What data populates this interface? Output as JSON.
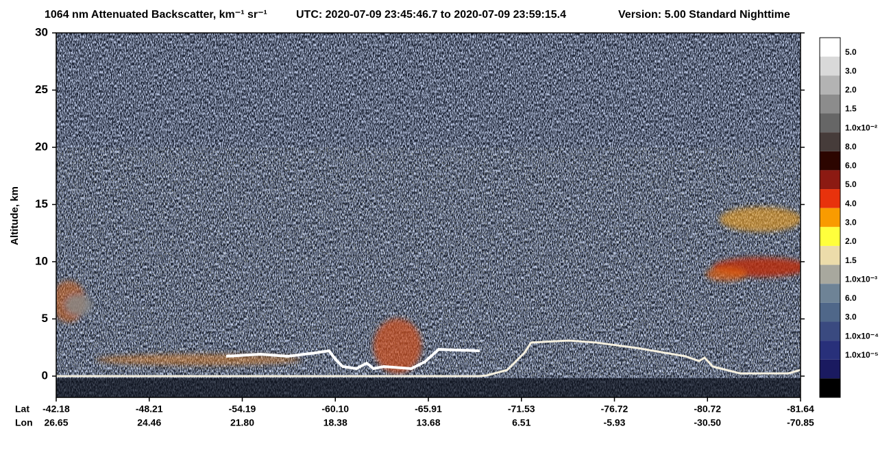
{
  "chart_data": {
    "type": "lidar-curtain",
    "title": "1064 nm Attenuated Backscatter, km⁻¹ sr⁻¹",
    "utc": "UTC:  2020-07-09 23:45:46.7  to  2020-07-09 23:59:15.4",
    "version": "Version: 5.00  Standard  Nighttime",
    "y_label": "Altitude, km",
    "ylim": [
      -1.86,
      30
    ],
    "yticks": [
      0,
      5,
      10,
      15,
      20,
      25,
      30
    ],
    "x_row_labels": [
      "Lat",
      "Lon"
    ],
    "lat_ticks": [
      "-42.18",
      "-48.21",
      "-54.19",
      "-60.10",
      "-65.91",
      "-71.53",
      "-76.72",
      "-80.72",
      "-81.64"
    ],
    "lon_ticks": [
      "26.65",
      "24.46",
      "21.80",
      "18.38",
      "13.68",
      "6.51",
      "-5.93",
      "-30.50",
      "-70.85"
    ],
    "colorbar": {
      "colors": [
        "#ffffff",
        "#d9d9d9",
        "#b3b3b3",
        "#8c8c8c",
        "#666666",
        "#463c3a",
        "#2c0500",
        "#8c1a12",
        "#e8320c",
        "#f99b00",
        "#ffff3c",
        "#ecdcaa",
        "#a8a89e",
        "#6e8396",
        "#4f6789",
        "#3a4a80",
        "#28307a",
        "#1a1a60",
        "#000000"
      ],
      "labels": [
        "5.0",
        "3.0",
        "2.0",
        "1.5",
        "1.0x10⁻²",
        "8.0",
        "6.0",
        "5.0",
        "4.0",
        "3.0",
        "2.0",
        "1.5",
        "1.0x10⁻³",
        "6.0",
        "3.0",
        "1.0x10⁻⁴",
        "1.0x10⁻⁵"
      ]
    }
  }
}
